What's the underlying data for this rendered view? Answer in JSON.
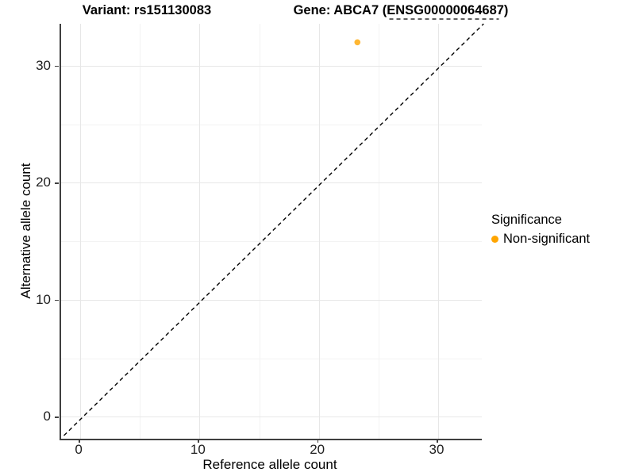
{
  "titles": {
    "variant": "Variant: rs151130083",
    "gene": "Gene: ABCA7 (ENSG00000064687)"
  },
  "chart_data": {
    "type": "scatter",
    "x_axis": {
      "label": "Reference allele count",
      "ticks": [
        0,
        10,
        20,
        30
      ],
      "minor_ticks": [
        5,
        15,
        25
      ],
      "range": [
        -1.6,
        33.66
      ]
    },
    "y_axis": {
      "label": "Alternative allele count",
      "ticks": [
        0,
        10,
        20,
        30
      ],
      "minor_ticks": [
        5,
        15,
        25
      ],
      "range": [
        -1.87,
        33.58
      ]
    },
    "points": [
      {
        "x": 23,
        "y": 32,
        "series": "Non-significant"
      }
    ],
    "reference_line": {
      "type": "identity",
      "slope": 1,
      "intercept": 0,
      "linetype": "dashed"
    },
    "legend": {
      "title": "Significance",
      "position": "right",
      "items": [
        {
          "label": "Non-significant",
          "color": "#FFA500"
        }
      ]
    },
    "colors": {
      "point": "#FFA500",
      "grid_major": "#E7E7E7",
      "grid_minor": "#F3F3F3",
      "axis_line": "#3F3F3F",
      "reference_line": "#000000"
    },
    "grid": true
  }
}
